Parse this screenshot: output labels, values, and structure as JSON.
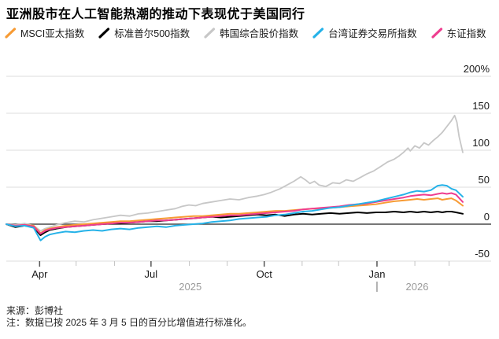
{
  "title": "亚洲股市在人工智能热潮的推动下表现优于美国同行",
  "legend": [
    {
      "key": "msci-asia-pacific",
      "label": "MSCI亚太指数",
      "color": "#f79b34"
    },
    {
      "key": "sp500",
      "label": "标准普尔500指数",
      "color": "#000000"
    },
    {
      "key": "kospi",
      "label": "韩国综合股价指数",
      "color": "#c7c7c7"
    },
    {
      "key": "taiwan-twse",
      "label": "台湾证券交易所指数",
      "color": "#25b2e8"
    },
    {
      "key": "topix",
      "label": "东证指数",
      "color": "#ee3d8f"
    }
  ],
  "footer": {
    "source": "来源：彭博社",
    "note": "注：数据已按 2025 年 3 月 5 日的百分比增值进行标准化。"
  },
  "chart_data": {
    "type": "line",
    "title": "亚洲股市在人工智能热潮的推动下表现优于美国同行",
    "xlabel": "",
    "ylabel": "",
    "y_unit": "percent change since 2025-03-05",
    "ylim": [
      -50,
      220
    ],
    "grid": true,
    "legend_position": "top",
    "y_ticks": [
      {
        "label": "200%",
        "value": 200
      },
      {
        "label": "150",
        "value": 150
      },
      {
        "label": "100",
        "value": 100
      },
      {
        "label": "50",
        "value": 50
      },
      {
        "label": "0",
        "value": 0
      },
      {
        "label": "-50",
        "value": -50
      }
    ],
    "x_major_ticks": [
      {
        "label": "Apr",
        "pos": 0.073
      },
      {
        "label": "Jul",
        "pos": 0.317
      },
      {
        "label": "Oct",
        "pos": 0.565
      },
      {
        "label": "Jan",
        "pos": 0.812
      }
    ],
    "x_minor_ticks": [
      0.153,
      0.237,
      0.401,
      0.484,
      0.648,
      0.728,
      0.895,
      0.97
    ],
    "year_labels": [
      {
        "label": "2025",
        "pos": 0.403,
        "divider": false
      },
      {
        "label": "2026",
        "pos": 0.9,
        "divider": true,
        "divider_pos": 0.812
      }
    ],
    "series": [
      {
        "key": "kospi",
        "name": "韩国综合股价指数",
        "color": "#c7c7c7",
        "width": 1.8,
        "points": [
          [
            0,
            0
          ],
          [
            0.02,
            -1
          ],
          [
            0.04,
            1
          ],
          [
            0.06,
            -2
          ],
          [
            0.075,
            -9
          ],
          [
            0.085,
            -6
          ],
          [
            0.095,
            -4
          ],
          [
            0.11,
            -1
          ],
          [
            0.13,
            2
          ],
          [
            0.15,
            4
          ],
          [
            0.17,
            3
          ],
          [
            0.19,
            6
          ],
          [
            0.21,
            8
          ],
          [
            0.23,
            10
          ],
          [
            0.25,
            12
          ],
          [
            0.27,
            11
          ],
          [
            0.29,
            14
          ],
          [
            0.31,
            15
          ],
          [
            0.33,
            17
          ],
          [
            0.35,
            19
          ],
          [
            0.37,
            21
          ],
          [
            0.385,
            24
          ],
          [
            0.4,
            26
          ],
          [
            0.415,
            25
          ],
          [
            0.43,
            28
          ],
          [
            0.45,
            30
          ],
          [
            0.47,
            32
          ],
          [
            0.49,
            34
          ],
          [
            0.51,
            33
          ],
          [
            0.53,
            36
          ],
          [
            0.55,
            38
          ],
          [
            0.565,
            40
          ],
          [
            0.58,
            43
          ],
          [
            0.6,
            48
          ],
          [
            0.615,
            53
          ],
          [
            0.63,
            58
          ],
          [
            0.645,
            64
          ],
          [
            0.655,
            60
          ],
          [
            0.665,
            55
          ],
          [
            0.675,
            58
          ],
          [
            0.685,
            53
          ],
          [
            0.7,
            51
          ],
          [
            0.715,
            56
          ],
          [
            0.73,
            55
          ],
          [
            0.745,
            60
          ],
          [
            0.76,
            58
          ],
          [
            0.775,
            63
          ],
          [
            0.79,
            68
          ],
          [
            0.805,
            72
          ],
          [
            0.82,
            78
          ],
          [
            0.835,
            84
          ],
          [
            0.85,
            88
          ],
          [
            0.86,
            92
          ],
          [
            0.87,
            97
          ],
          [
            0.88,
            103
          ],
          [
            0.885,
            99
          ],
          [
            0.895,
            106
          ],
          [
            0.905,
            103
          ],
          [
            0.915,
            110
          ],
          [
            0.925,
            107
          ],
          [
            0.935,
            113
          ],
          [
            0.945,
            118
          ],
          [
            0.955,
            124
          ],
          [
            0.965,
            132
          ],
          [
            0.975,
            140
          ],
          [
            0.982,
            147
          ],
          [
            0.987,
            138
          ],
          [
            0.992,
            118
          ],
          [
            1,
            97
          ]
        ]
      },
      {
        "key": "sp500",
        "name": "标准普尔500指数",
        "color": "#000000",
        "width": 2,
        "points": [
          [
            0,
            0
          ],
          [
            0.02,
            -4
          ],
          [
            0.04,
            -2
          ],
          [
            0.06,
            -4
          ],
          [
            0.075,
            -15
          ],
          [
            0.085,
            -11
          ],
          [
            0.095,
            -8
          ],
          [
            0.11,
            -6
          ],
          [
            0.13,
            -4
          ],
          [
            0.15,
            -3
          ],
          [
            0.17,
            -2
          ],
          [
            0.19,
            -1
          ],
          [
            0.21,
            0
          ],
          [
            0.23,
            1
          ],
          [
            0.25,
            1
          ],
          [
            0.27,
            2
          ],
          [
            0.29,
            3
          ],
          [
            0.31,
            4
          ],
          [
            0.33,
            4
          ],
          [
            0.35,
            5
          ],
          [
            0.37,
            6
          ],
          [
            0.39,
            7
          ],
          [
            0.41,
            8
          ],
          [
            0.43,
            9
          ],
          [
            0.45,
            10
          ],
          [
            0.47,
            9
          ],
          [
            0.49,
            10
          ],
          [
            0.51,
            11
          ],
          [
            0.53,
            12
          ],
          [
            0.55,
            13
          ],
          [
            0.57,
            12
          ],
          [
            0.59,
            13
          ],
          [
            0.61,
            11
          ],
          [
            0.63,
            13
          ],
          [
            0.65,
            14
          ],
          [
            0.67,
            13
          ],
          [
            0.69,
            14
          ],
          [
            0.71,
            15
          ],
          [
            0.73,
            14
          ],
          [
            0.75,
            15
          ],
          [
            0.77,
            16
          ],
          [
            0.79,
            15
          ],
          [
            0.81,
            16
          ],
          [
            0.83,
            16
          ],
          [
            0.85,
            17
          ],
          [
            0.87,
            16
          ],
          [
            0.885,
            17
          ],
          [
            0.9,
            16
          ],
          [
            0.915,
            17
          ],
          [
            0.93,
            16
          ],
          [
            0.945,
            17
          ],
          [
            0.955,
            16
          ],
          [
            0.965,
            17
          ],
          [
            0.975,
            17
          ],
          [
            0.985,
            16
          ],
          [
            1,
            14
          ]
        ]
      },
      {
        "key": "msci-asia-pacific",
        "name": "MSCI亚太指数",
        "color": "#f79b34",
        "width": 2,
        "points": [
          [
            0,
            0
          ],
          [
            0.02,
            -2
          ],
          [
            0.04,
            -1
          ],
          [
            0.06,
            -2
          ],
          [
            0.075,
            -12
          ],
          [
            0.085,
            -8
          ],
          [
            0.095,
            -6
          ],
          [
            0.11,
            -4
          ],
          [
            0.13,
            -2
          ],
          [
            0.15,
            -1
          ],
          [
            0.17,
            0
          ],
          [
            0.19,
            1
          ],
          [
            0.21,
            2
          ],
          [
            0.23,
            3
          ],
          [
            0.25,
            4
          ],
          [
            0.27,
            4
          ],
          [
            0.29,
            5
          ],
          [
            0.31,
            6
          ],
          [
            0.33,
            7
          ],
          [
            0.35,
            8
          ],
          [
            0.37,
            9
          ],
          [
            0.39,
            10
          ],
          [
            0.41,
            11
          ],
          [
            0.43,
            11
          ],
          [
            0.45,
            12
          ],
          [
            0.47,
            13
          ],
          [
            0.49,
            14
          ],
          [
            0.51,
            14
          ],
          [
            0.53,
            15
          ],
          [
            0.55,
            16
          ],
          [
            0.57,
            17
          ],
          [
            0.59,
            18
          ],
          [
            0.61,
            18
          ],
          [
            0.63,
            19
          ],
          [
            0.65,
            20
          ],
          [
            0.67,
            21
          ],
          [
            0.69,
            21
          ],
          [
            0.71,
            22
          ],
          [
            0.73,
            23
          ],
          [
            0.75,
            24
          ],
          [
            0.77,
            25
          ],
          [
            0.79,
            26
          ],
          [
            0.81,
            27
          ],
          [
            0.83,
            29
          ],
          [
            0.85,
            31
          ],
          [
            0.87,
            32
          ],
          [
            0.885,
            33
          ],
          [
            0.9,
            34
          ],
          [
            0.915,
            33
          ],
          [
            0.93,
            34
          ],
          [
            0.945,
            35
          ],
          [
            0.955,
            33
          ],
          [
            0.965,
            34
          ],
          [
            0.975,
            35
          ],
          [
            0.985,
            32
          ],
          [
            1,
            25
          ]
        ]
      },
      {
        "key": "topix",
        "name": "东证指数",
        "color": "#ee3d8f",
        "width": 2,
        "points": [
          [
            0,
            0
          ],
          [
            0.02,
            -2
          ],
          [
            0.04,
            -1
          ],
          [
            0.06,
            -3
          ],
          [
            0.075,
            -13
          ],
          [
            0.085,
            -9
          ],
          [
            0.095,
            -7
          ],
          [
            0.11,
            -5
          ],
          [
            0.13,
            -4
          ],
          [
            0.15,
            -3
          ],
          [
            0.17,
            -2
          ],
          [
            0.19,
            -1
          ],
          [
            0.21,
            0
          ],
          [
            0.23,
            1
          ],
          [
            0.25,
            2
          ],
          [
            0.27,
            2
          ],
          [
            0.29,
            3
          ],
          [
            0.31,
            4
          ],
          [
            0.33,
            5
          ],
          [
            0.35,
            5
          ],
          [
            0.37,
            6
          ],
          [
            0.39,
            7
          ],
          [
            0.41,
            8
          ],
          [
            0.43,
            9
          ],
          [
            0.45,
            10
          ],
          [
            0.47,
            11
          ],
          [
            0.49,
            12
          ],
          [
            0.51,
            12
          ],
          [
            0.53,
            13
          ],
          [
            0.55,
            14
          ],
          [
            0.57,
            15
          ],
          [
            0.59,
            16
          ],
          [
            0.61,
            17
          ],
          [
            0.63,
            18
          ],
          [
            0.65,
            20
          ],
          [
            0.67,
            21
          ],
          [
            0.69,
            22
          ],
          [
            0.71,
            23
          ],
          [
            0.73,
            24
          ],
          [
            0.75,
            26
          ],
          [
            0.77,
            27
          ],
          [
            0.79,
            28
          ],
          [
            0.81,
            30
          ],
          [
            0.83,
            32
          ],
          [
            0.85,
            34
          ],
          [
            0.87,
            36
          ],
          [
            0.885,
            38
          ],
          [
            0.9,
            39
          ],
          [
            0.915,
            40
          ],
          [
            0.93,
            39
          ],
          [
            0.945,
            41
          ],
          [
            0.955,
            42
          ],
          [
            0.965,
            41
          ],
          [
            0.975,
            42
          ],
          [
            0.985,
            40
          ],
          [
            1,
            30
          ]
        ]
      },
      {
        "key": "taiwan-twse",
        "name": "台湾证券交易所指数",
        "color": "#25b2e8",
        "width": 2,
        "points": [
          [
            0,
            0
          ],
          [
            0.02,
            -3
          ],
          [
            0.04,
            -2
          ],
          [
            0.06,
            -5
          ],
          [
            0.075,
            -22
          ],
          [
            0.085,
            -17
          ],
          [
            0.095,
            -14
          ],
          [
            0.11,
            -12
          ],
          [
            0.13,
            -10
          ],
          [
            0.15,
            -11
          ],
          [
            0.17,
            -9
          ],
          [
            0.19,
            -8
          ],
          [
            0.21,
            -9
          ],
          [
            0.23,
            -7
          ],
          [
            0.25,
            -6
          ],
          [
            0.27,
            -7
          ],
          [
            0.29,
            -5
          ],
          [
            0.31,
            -4
          ],
          [
            0.33,
            -3
          ],
          [
            0.35,
            -4
          ],
          [
            0.37,
            -2
          ],
          [
            0.39,
            -1
          ],
          [
            0.41,
            0
          ],
          [
            0.43,
            1
          ],
          [
            0.45,
            3
          ],
          [
            0.47,
            4
          ],
          [
            0.49,
            5
          ],
          [
            0.51,
            7
          ],
          [
            0.53,
            8
          ],
          [
            0.55,
            9
          ],
          [
            0.57,
            10
          ],
          [
            0.59,
            12
          ],
          [
            0.61,
            13
          ],
          [
            0.63,
            15
          ],
          [
            0.65,
            17
          ],
          [
            0.67,
            18
          ],
          [
            0.69,
            20
          ],
          [
            0.71,
            22
          ],
          [
            0.73,
            23
          ],
          [
            0.75,
            25
          ],
          [
            0.77,
            27
          ],
          [
            0.79,
            29
          ],
          [
            0.81,
            31
          ],
          [
            0.83,
            34
          ],
          [
            0.85,
            37
          ],
          [
            0.87,
            40
          ],
          [
            0.885,
            43
          ],
          [
            0.9,
            45
          ],
          [
            0.915,
            44
          ],
          [
            0.93,
            46
          ],
          [
            0.945,
            52
          ],
          [
            0.955,
            53
          ],
          [
            0.965,
            52
          ],
          [
            0.975,
            48
          ],
          [
            0.985,
            46
          ],
          [
            1,
            37
          ]
        ]
      }
    ]
  }
}
